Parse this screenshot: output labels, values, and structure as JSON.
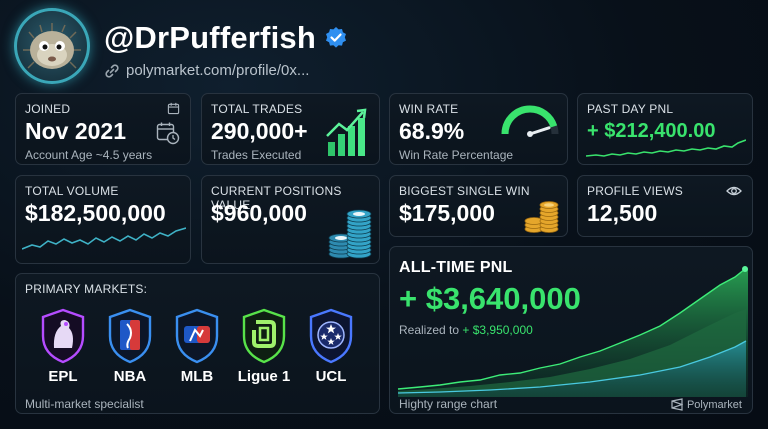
{
  "profile": {
    "handle": "@DrPufferfish",
    "link": "polymarket.com/profile/0x..."
  },
  "stats": {
    "joined": {
      "label": "JOINED",
      "value": "Nov 2021",
      "sub": "Account Age ~4.5 years"
    },
    "total_trades": {
      "label": "TOTAL TRADES",
      "value": "290,000+",
      "sub": "Trades Executed"
    },
    "win_rate": {
      "label": "WIN RATE",
      "value": "68.9%",
      "sub": "Win Rate Percentage",
      "gauge_level": 0.9
    },
    "past_day_pnl": {
      "label": "PAST DAY PNL",
      "value": "+ $212,400.00"
    },
    "total_volume": {
      "label": "TOTAL VOLUME",
      "value": "$182,500,000"
    },
    "current_positions": {
      "label": "CURRENT POSITIONS VALUE",
      "value": "$960,000"
    },
    "biggest_win": {
      "label": "BIGGEST SINGLE WIN",
      "value": "$175,000"
    },
    "profile_views": {
      "label": "PROFILE VIEWS",
      "value": "12,500"
    }
  },
  "markets": {
    "label": "PRIMARY MARKETS:",
    "items": [
      {
        "label": "EPL",
        "color": "#b54cff"
      },
      {
        "label": "NBA",
        "color": "#3a8ff0"
      },
      {
        "label": "MLB",
        "color": "#3a8ff0"
      },
      {
        "label": "Ligue 1",
        "color": "#58e34a"
      },
      {
        "label": "UCL",
        "color": "#4a78ff"
      }
    ],
    "footer": "Multi-market specialist"
  },
  "alltime": {
    "label": "ALL-TIME PNL",
    "value": "+ $3,640,000",
    "realized_prefix": "Realized to",
    "realized_value": "+ $3,950,000",
    "footer": "Highty range chart",
    "brand": "Polymarket"
  },
  "colors": {
    "accent_green": "#39e36d",
    "card_border": "#28333f",
    "verified_blue": "#2f8ff0"
  }
}
